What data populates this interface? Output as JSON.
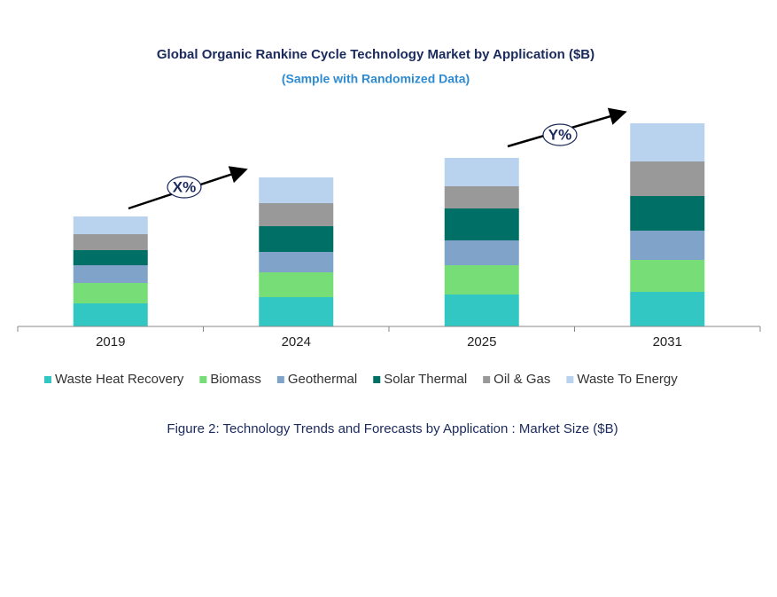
{
  "chart_data": {
    "type": "stacked_bar",
    "title": "Global Organic Rankine Cycle Technology Market by Application ($B)",
    "subtitle": "(Sample with Randomized Data)",
    "caption": "Figure 2: Technology  Trends  and Forecasts by Application : Market Size ($B)",
    "annotations": [
      "X%",
      "Y%"
    ],
    "categories": [
      "2019",
      "2024",
      "2025",
      "2031"
    ],
    "ylim": [
      0,
      240
    ],
    "series": [
      {
        "name": "Waste Heat Recovery",
        "color": "#33c7c4",
        "values": [
          26,
          33,
          36,
          39
        ]
      },
      {
        "name": "Biomass",
        "color": "#77dd77",
        "values": [
          23,
          28,
          33,
          36
        ]
      },
      {
        "name": "Geothermal",
        "color": "#7fa3c9",
        "values": [
          20,
          23,
          28,
          33
        ]
      },
      {
        "name": "Solar Thermal",
        "color": "#007066",
        "values": [
          17,
          29,
          36,
          39
        ]
      },
      {
        "name": "Oil & Gas",
        "color": "#999999",
        "values": [
          18,
          26,
          25,
          39
        ]
      },
      {
        "name": "Waste To Energy",
        "color": "#b9d3ee",
        "values": [
          20,
          29,
          32,
          43
        ]
      }
    ]
  }
}
